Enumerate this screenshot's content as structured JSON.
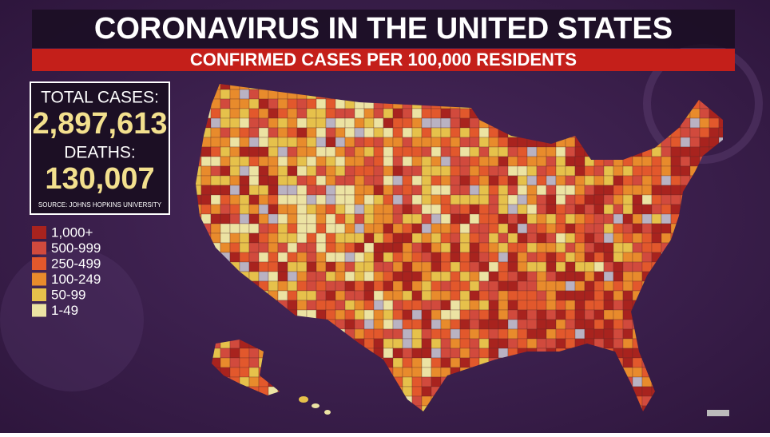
{
  "header": {
    "title": "CORONAVIRUS IN THE UNITED STATES",
    "subtitle": "CONFIRMED CASES PER 100,000 RESIDENTS"
  },
  "stats": {
    "total_cases_label": "TOTAL CASES:",
    "total_cases": "2,897,613",
    "deaths_label": "DEATHS:",
    "deaths": "130,007",
    "source": "SOURCE: JOHNS HOPKINS UNIVERSITY"
  },
  "legend": [
    {
      "label": "1,000+",
      "color": "#a8231e"
    },
    {
      "label": "500-999",
      "color": "#d14a3d"
    },
    {
      "label": "250-499",
      "color": "#e2582c"
    },
    {
      "label": "100-249",
      "color": "#e88b2c"
    },
    {
      "label": "50-99",
      "color": "#e6c14b"
    },
    {
      "label": "1-49",
      "color": "#ece3a3"
    }
  ]
}
